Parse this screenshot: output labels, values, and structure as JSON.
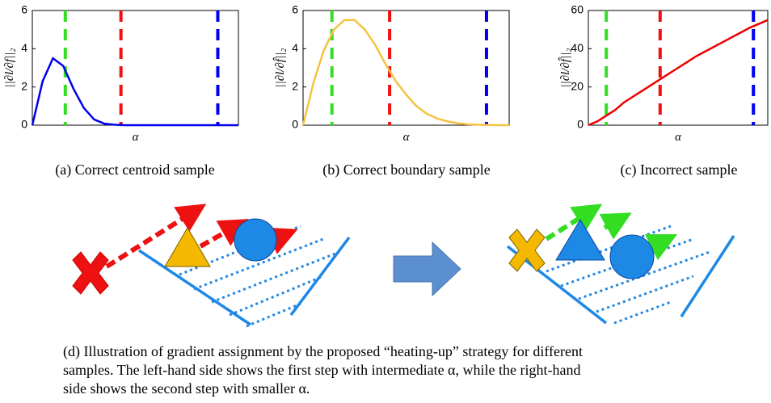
{
  "chart_data": [
    {
      "type": "line",
      "ylabel": "||∂l/∂f||₂",
      "xlabel": "α",
      "caption": "(a)  Correct centroid sample",
      "color": "#0000ee",
      "values": [
        0,
        2.3,
        3.5,
        3.1,
        1.9,
        0.9,
        0.3,
        0.08,
        0.02,
        0,
        0,
        0,
        0,
        0,
        0,
        0,
        0,
        0,
        0,
        0,
        0
      ],
      "ylim": [
        0,
        6
      ],
      "yticks": [
        0,
        2,
        4,
        6
      ]
    },
    {
      "type": "line",
      "ylabel": "||∂l/∂f̂||₂",
      "xlabel": "α",
      "caption": "(b)  Correct boundary sample",
      "color": "#f5c242",
      "values": [
        0,
        2.2,
        3.9,
        5.0,
        5.5,
        5.5,
        5.0,
        4.2,
        3.2,
        2.3,
        1.6,
        1.0,
        0.6,
        0.35,
        0.2,
        0.1,
        0.05,
        0.02,
        0.01,
        0,
        0
      ],
      "ylim": [
        0,
        6
      ],
      "yticks": [
        0,
        2,
        4,
        6
      ]
    },
    {
      "type": "line",
      "ylabel": "||∂l/∂f̂||₂",
      "xlabel": "α",
      "caption": "(c)  Incorrect sample",
      "color": "#ee0000",
      "values": [
        0,
        2,
        5,
        8,
        12,
        15,
        18,
        21,
        24,
        27,
        30,
        33,
        36,
        38.5,
        41,
        43.5,
        46,
        48.5,
        51,
        53,
        55
      ],
      "ylim": [
        0,
        60
      ],
      "yticks": [
        0,
        20,
        40,
        60
      ]
    }
  ],
  "caption_d": [
    "(d)  Illustration of gradient assignment by the proposed “heating-up” strategy for different",
    "samples. The left-hand side shows the first step with intermediate α, while the right-hand",
    "side shows the second step with smaller α."
  ]
}
